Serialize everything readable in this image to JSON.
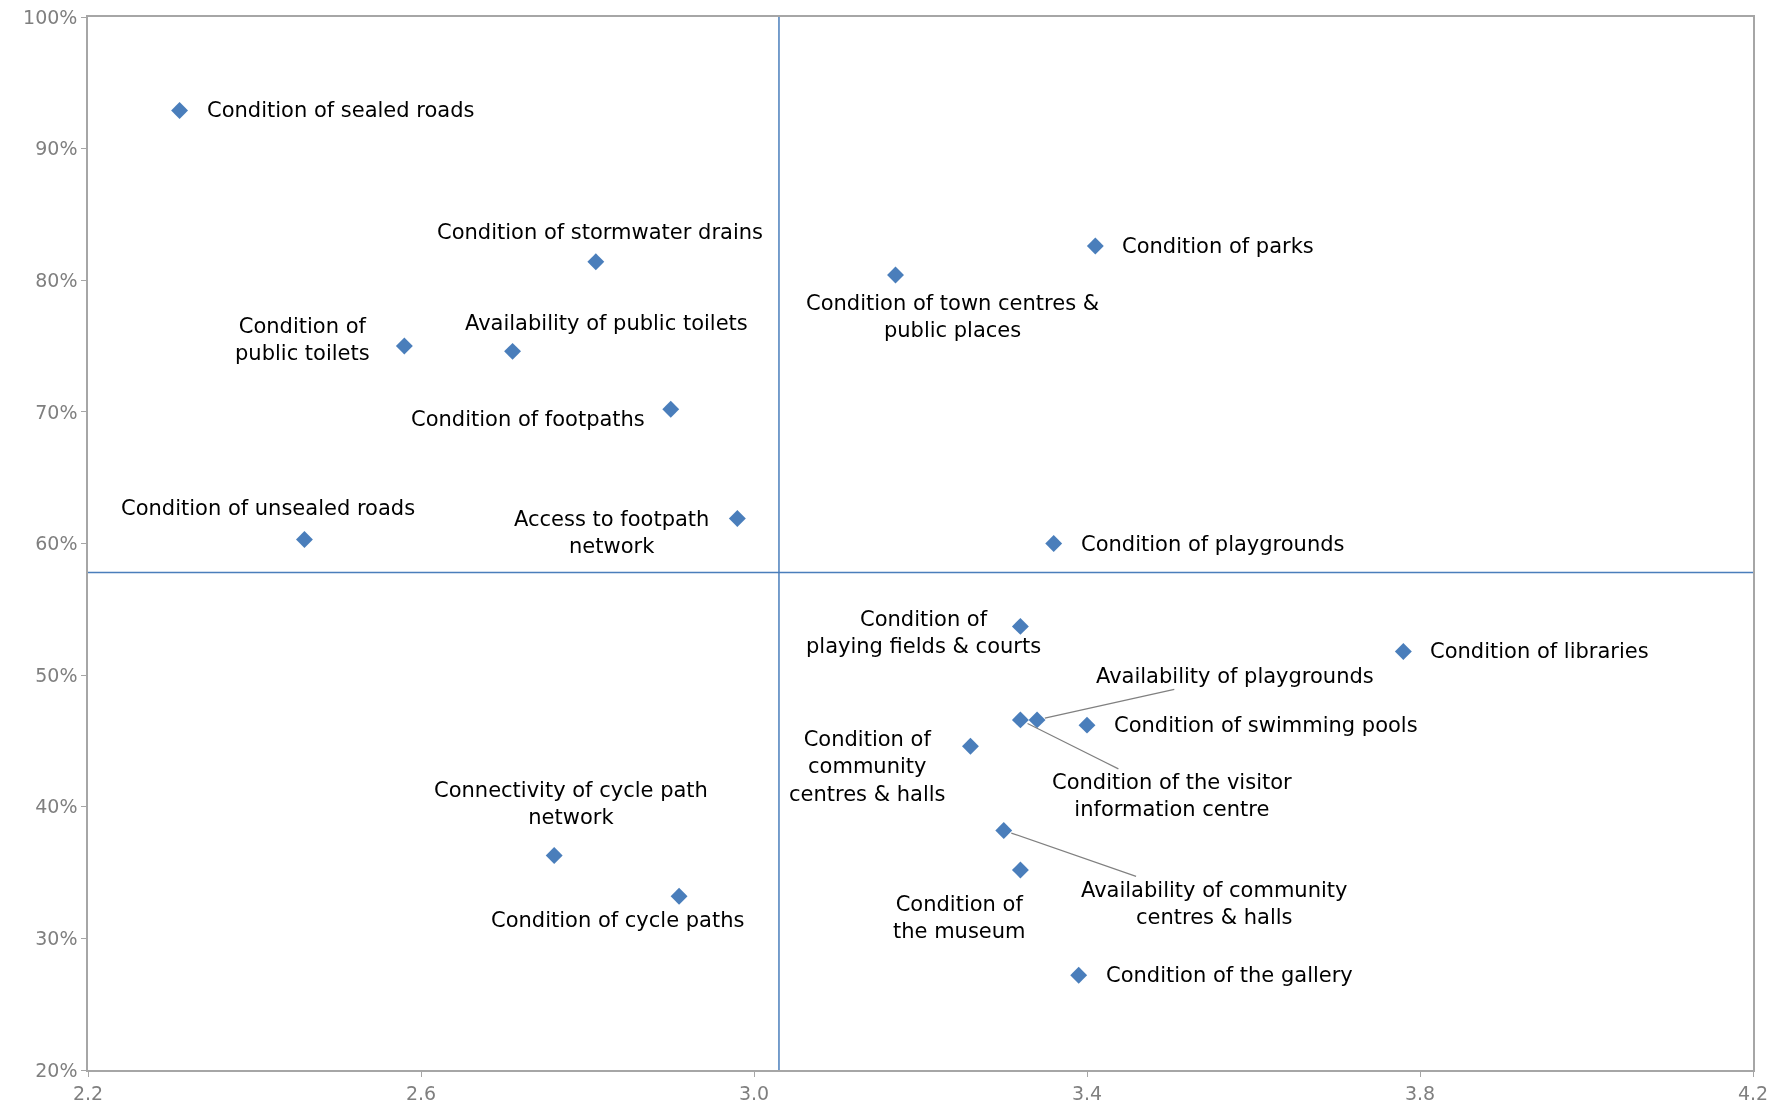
{
  "chart_data": {
    "type": "scatter",
    "marker": "diamond",
    "grid": false,
    "legend": false,
    "xlim": [
      2.2,
      4.2
    ],
    "ylim": [
      20,
      100
    ],
    "xticks": [
      2.2,
      2.6,
      {
        "value": 3,
        "label": "3.0"
      },
      3.4,
      3.8,
      4.2
    ],
    "yticks": [
      {
        "value": 20,
        "label": "20%"
      },
      {
        "value": 30,
        "label": "30%"
      },
      {
        "value": 40,
        "label": "40%"
      },
      {
        "value": 50,
        "label": "50%"
      },
      {
        "value": 60,
        "label": "60%"
      },
      {
        "value": 70,
        "label": "70%"
      },
      {
        "value": 80,
        "label": "80%"
      },
      {
        "value": 90,
        "label": "90%"
      },
      {
        "value": 100,
        "label": "100%"
      }
    ],
    "series": [
      {
        "color": "#4a7ebb",
        "x": [
          2.31,
          2.81,
          2.58,
          2.71,
          2.9,
          2.46,
          2.98,
          3.17,
          3.41,
          3.36,
          3.32,
          3.78,
          3.34,
          3.32,
          3.4,
          3.26,
          3.3,
          3.32,
          3.39,
          2.76,
          2.91
        ],
        "values": [
          92.9,
          81.4,
          75.0,
          74.6,
          70.2,
          60.3,
          61.9,
          80.4,
          82.6,
          60.0,
          53.7,
          51.8,
          46.6,
          46.6,
          46.2,
          44.6,
          38.2,
          35.2,
          27.2,
          36.3,
          33.2
        ]
      }
    ],
    "ref_lines": [
      {
        "axis": "x",
        "value": 3.03,
        "color": "#4a7ebb"
      },
      {
        "axis": "y",
        "value": 57.8,
        "color": "#4a7ebb"
      }
    ],
    "annotations": [
      {
        "text": "Condition of sealed roads",
        "x": 2.31,
        "y": 92.9
      },
      {
        "text": "Condition of stormwater drains",
        "x": 2.81,
        "y": 81.4
      },
      {
        "text": "Condition of\npublic toilets",
        "x": 2.58,
        "y": 75.0
      },
      {
        "text": "Availability of public toilets",
        "x": 2.71,
        "y": 74.6
      },
      {
        "text": "Condition of footpaths",
        "x": 2.9,
        "y": 70.2
      },
      {
        "text": "Condition of unsealed roads",
        "x": 2.46,
        "y": 60.3
      },
      {
        "text": "Access to footpath\nnetwork",
        "x": 2.98,
        "y": 61.9
      },
      {
        "text": "Condition of town centres &\npublic places",
        "x": 3.17,
        "y": 80.4
      },
      {
        "text": "Condition of parks",
        "x": 3.41,
        "y": 82.6
      },
      {
        "text": "Condition of playgrounds",
        "x": 3.36,
        "y": 60.0
      },
      {
        "text": "Condition of\nplaying fields & courts",
        "x": 3.32,
        "y": 53.7
      },
      {
        "text": "Condition of libraries",
        "x": 3.78,
        "y": 51.8
      },
      {
        "text": "Availability of playgrounds",
        "x": 3.34,
        "y": 46.6
      },
      {
        "text": "Condition of the visitor\ninformation centre",
        "x": 3.32,
        "y": 46.6
      },
      {
        "text": "Condition of swimming pools",
        "x": 3.4,
        "y": 46.2
      },
      {
        "text": "Condition of\ncommunity\ncentres & halls",
        "x": 3.26,
        "y": 44.6
      },
      {
        "text": "Availability of community\ncentres & halls",
        "x": 3.3,
        "y": 38.2
      },
      {
        "text": "Condition of\nthe museum",
        "x": 3.32,
        "y": 35.2
      },
      {
        "text": "Condition of the gallery",
        "x": 3.39,
        "y": 27.2
      },
      {
        "text": "Connectivity of cycle path\nnetwork",
        "x": 2.76,
        "y": 36.3
      },
      {
        "text": "Condition of cycle paths",
        "x": 2.91,
        "y": 33.2
      }
    ]
  }
}
